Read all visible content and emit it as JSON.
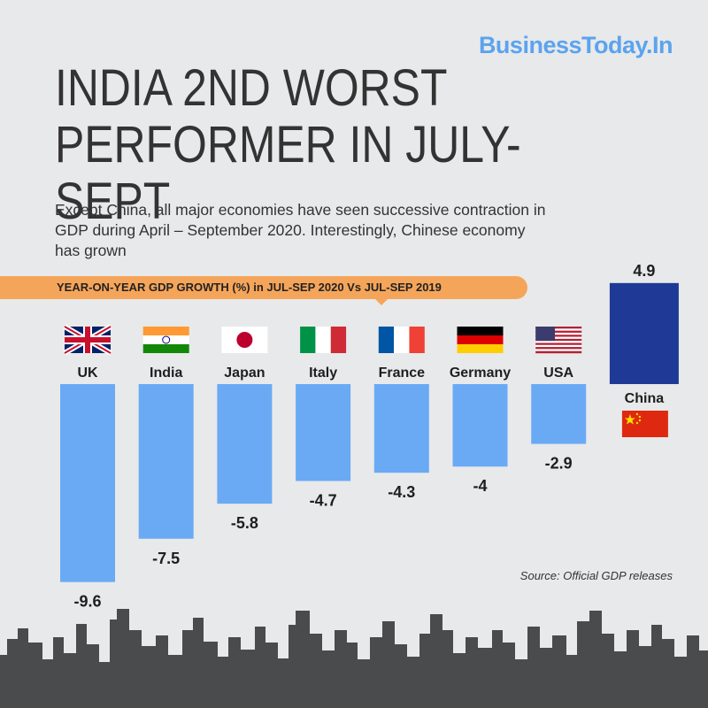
{
  "brand": "BusinessToday.In",
  "title_lines": [
    "INDIA 2ND WORST",
    "PERFORMER IN JULY-SEPT"
  ],
  "subtitle": "Except China, all major economies have seen successive contraction in GDP during April – September 2020. Interestingly, Chinese economy has grown",
  "banner": "YEAR-ON-YEAR GDP GROWTH (%) in JUL-SEP 2020 Vs JUL-SEP 2019",
  "source": "Source: Official GDP releases",
  "colors": {
    "negative_bar": "#6aaaf5",
    "positive_bar": "#1f3a96",
    "banner": "#f5a55a",
    "brand": "#5ba3ee",
    "skyline": "#4a4b4d"
  },
  "chart_data": {
    "type": "bar",
    "categories": [
      "UK",
      "India",
      "Japan",
      "Italy",
      "France",
      "Germany",
      "USA",
      "China"
    ],
    "values": [
      -9.6,
      -7.5,
      -5.8,
      -4.7,
      -4.3,
      -4,
      -2.9,
      4.9
    ],
    "value_labels": [
      "-9.6",
      "-7.5",
      "-5.8",
      "-4.7",
      "-4.3",
      "-4",
      "-2.9",
      "4.9"
    ],
    "flags": [
      "uk-flag",
      "india-flag",
      "japan-flag",
      "italy-flag",
      "france-flag",
      "germany-flag",
      "usa-flag",
      "china-flag"
    ],
    "title": "YEAR-ON-YEAR GDP GROWTH (%) in JUL-SEP 2020 Vs JUL-SEP 2019",
    "xlabel": "",
    "ylabel": "",
    "grid": false,
    "legend": "none"
  }
}
